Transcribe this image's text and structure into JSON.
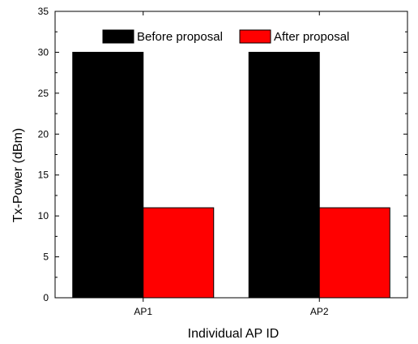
{
  "chart_data": {
    "type": "bar",
    "categories": [
      "AP1",
      "AP2"
    ],
    "series": [
      {
        "name": "Before proposal",
        "values": [
          30,
          30
        ],
        "color": "#000000"
      },
      {
        "name": "After proposal",
        "values": [
          11,
          11
        ],
        "color": "#ff0000"
      }
    ],
    "xlabel": "Individual AP ID",
    "ylabel": "Tx-Power (dBm)",
    "ylim": [
      0,
      35
    ],
    "yticks": [
      0,
      5,
      10,
      15,
      20,
      25,
      30,
      35
    ],
    "grid": false,
    "legend_position": "top"
  }
}
